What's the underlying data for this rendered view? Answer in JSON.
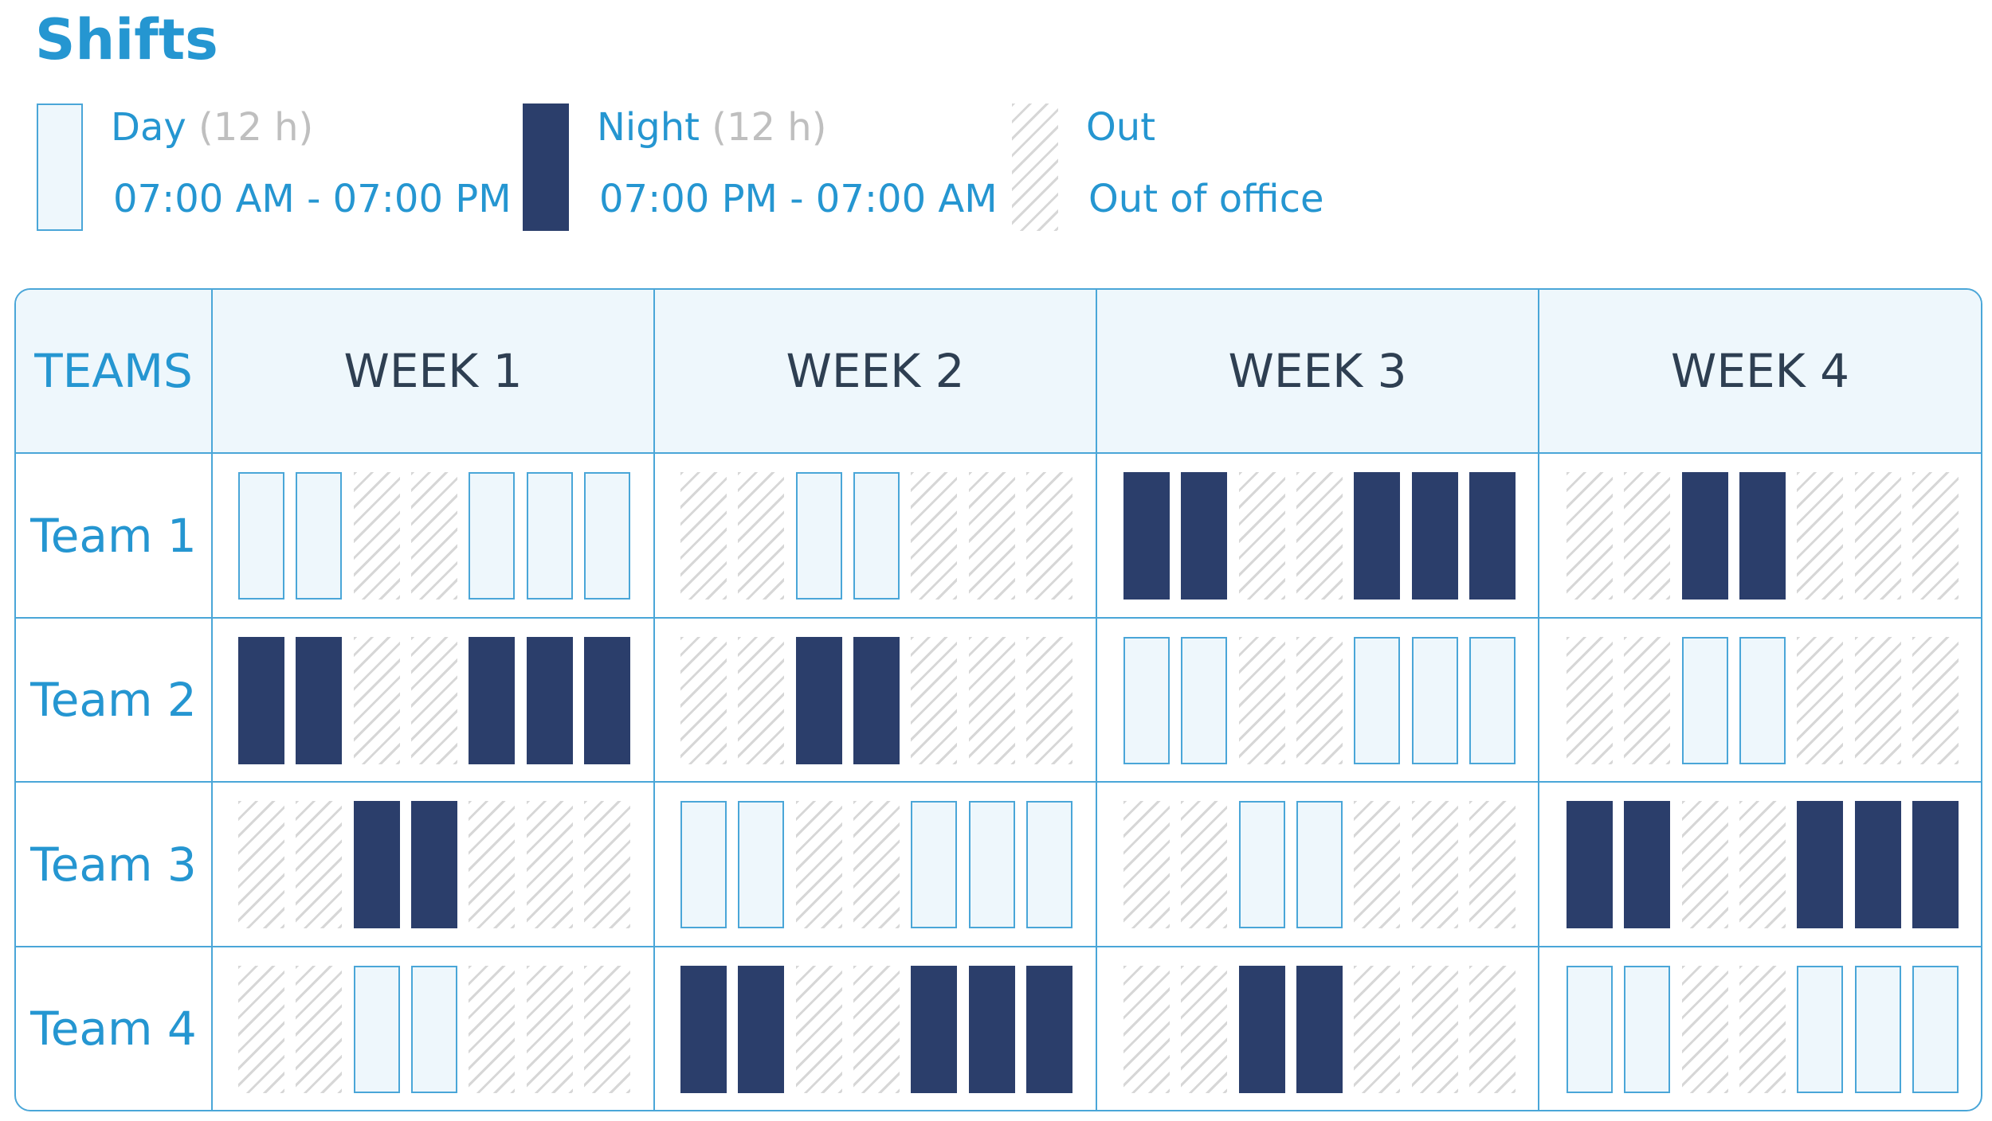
{
  "title": "Shifts",
  "legend": [
    {
      "key": "day",
      "name": "Day",
      "duration": "(12 h)",
      "time": "07:00 AM - 07:00 PM"
    },
    {
      "key": "night",
      "name": "Night",
      "duration": "(12 h)",
      "time": "07:00 PM - 07:00 AM"
    },
    {
      "key": "out",
      "name": "Out",
      "duration": "",
      "time": "Out of office"
    }
  ],
  "table": {
    "corner_header": "TEAMS",
    "weeks": [
      "WEEK 1",
      "WEEK 2",
      "WEEK 3",
      "WEEK 4"
    ],
    "teams": [
      {
        "name": "Team 1",
        "schedule": [
          [
            "day",
            "day",
            "out",
            "out",
            "day",
            "day",
            "day"
          ],
          [
            "out",
            "out",
            "day",
            "day",
            "out",
            "out",
            "out"
          ],
          [
            "night",
            "night",
            "out",
            "out",
            "night",
            "night",
            "night"
          ],
          [
            "out",
            "out",
            "night",
            "night",
            "out",
            "out",
            "out"
          ]
        ]
      },
      {
        "name": "Team 2",
        "schedule": [
          [
            "night",
            "night",
            "out",
            "out",
            "night",
            "night",
            "night"
          ],
          [
            "out",
            "out",
            "night",
            "night",
            "out",
            "out",
            "out"
          ],
          [
            "day",
            "day",
            "out",
            "out",
            "day",
            "day",
            "day"
          ],
          [
            "out",
            "out",
            "day",
            "day",
            "out",
            "out",
            "out"
          ]
        ]
      },
      {
        "name": "Team 3",
        "schedule": [
          [
            "out",
            "out",
            "night",
            "night",
            "out",
            "out",
            "out"
          ],
          [
            "day",
            "day",
            "out",
            "out",
            "day",
            "day",
            "day"
          ],
          [
            "out",
            "out",
            "day",
            "day",
            "out",
            "out",
            "out"
          ],
          [
            "night",
            "night",
            "out",
            "out",
            "night",
            "night",
            "night"
          ]
        ]
      },
      {
        "name": "Team 4",
        "schedule": [
          [
            "out",
            "out",
            "day",
            "day",
            "out",
            "out",
            "out"
          ],
          [
            "night",
            "night",
            "out",
            "out",
            "night",
            "night",
            "night"
          ],
          [
            "out",
            "out",
            "night",
            "night",
            "out",
            "out",
            "out"
          ],
          [
            "day",
            "day",
            "out",
            "out",
            "day",
            "day",
            "day"
          ]
        ]
      }
    ]
  }
}
